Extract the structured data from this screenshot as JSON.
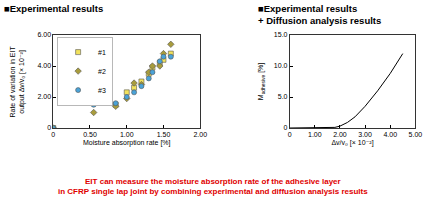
{
  "headings": {
    "left": "■Experimental results",
    "right": [
      "■Experimental results",
      "+ Diffusion analysis results"
    ]
  },
  "conclusion": [
    "EIT can measure the moisture absorption rate of the adhesive layer",
    "in CFRP single lap joint by combining experimental and diffusion analysis results"
  ],
  "chart_data": [
    {
      "type": "scatter",
      "x_label": "Moisture absorption rate [%]",
      "y_label": [
        "Rate of variation in EIT",
        "output Δv/v₀ [× 10⁻²]"
      ],
      "xlim": [
        0,
        2
      ],
      "xticks": [
        0,
        {
          "value": 0.5,
          "label": "0.50"
        },
        {
          "value": 1,
          "label": "1.00"
        },
        {
          "value": 1.5,
          "label": "1.50"
        },
        {
          "value": 2,
          "label": "2.00"
        }
      ],
      "ylim": [
        0,
        6
      ],
      "yticks": [
        0,
        {
          "value": 2,
          "label": "2.00"
        },
        {
          "value": 4,
          "label": "4.00"
        },
        {
          "value": 6,
          "label": "6.00"
        }
      ],
      "grid": false,
      "legend": "upper left",
      "series": [
        {
          "name": "#1",
          "color": "#f2e25c",
          "marker": "square",
          "x": [
            0,
            0.55,
            0.85,
            1.0,
            1.1,
            1.2,
            1.3,
            1.35,
            1.45,
            1.5,
            1.6
          ],
          "values": [
            0,
            1.6,
            1.5,
            2.3,
            2.6,
            3.0,
            3.5,
            3.9,
            4.2,
            4.4,
            4.8
          ]
        },
        {
          "name": "#2",
          "color": "#a89c3c",
          "marker": "diamond",
          "x": [
            0,
            0.55,
            0.85,
            1.0,
            1.1,
            1.2,
            1.3,
            1.35,
            1.45,
            1.5,
            1.6
          ],
          "values": [
            0,
            1.0,
            1.4,
            1.9,
            2.9,
            2.8,
            3.6,
            4.0,
            4.0,
            4.8,
            5.4
          ]
        },
        {
          "name": "#3",
          "color": "#4aa3d8",
          "marker": "circle",
          "x": [
            0,
            0.55,
            0.85,
            1.0,
            1.1,
            1.2,
            1.3,
            1.35,
            1.45,
            1.5,
            1.6
          ],
          "values": [
            0,
            1.5,
            1.6,
            2.0,
            2.3,
            2.7,
            3.2,
            3.6,
            4.3,
            4.6,
            4.6
          ]
        }
      ]
    },
    {
      "type": "line",
      "x_label": "Δv/v₀ [× 10⁻²]",
      "y_label": {
        "text": "M",
        "subscript": "adhesive",
        "suffix": " [%]"
      },
      "xlim": [
        0,
        5
      ],
      "xticks": [
        0,
        {
          "value": 1,
          "label": "1.00"
        },
        {
          "value": 2,
          "label": "2.00"
        },
        {
          "value": 3,
          "label": "3.00"
        },
        {
          "value": 4,
          "label": "4.00"
        },
        {
          "value": 5,
          "label": "5.00"
        }
      ],
      "ylim": [
        0,
        15
      ],
      "yticks": [
        0,
        {
          "value": 5,
          "label": "5.0"
        },
        {
          "value": 10,
          "label": "10.0"
        },
        {
          "value": 15,
          "label": "15.0"
        }
      ],
      "grid": false,
      "color": "#000000",
      "x": [
        0,
        1.5,
        1.8,
        2.0,
        2.3,
        2.6,
        3.0,
        3.5,
        4.0,
        4.5
      ],
      "values": [
        0,
        0,
        0.1,
        0.3,
        0.9,
        1.8,
        3.5,
        6.0,
        8.8,
        12.0
      ]
    }
  ]
}
